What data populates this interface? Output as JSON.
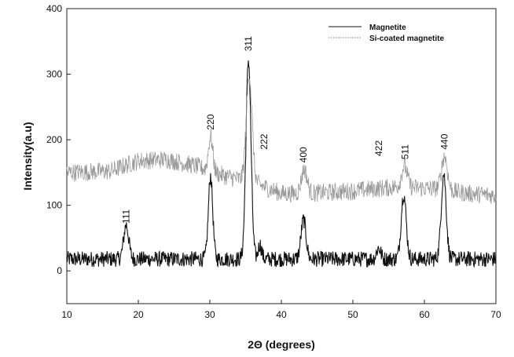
{
  "chart_data": {
    "type": "line",
    "title": "",
    "xlabel": "2Θ (degrees)",
    "ylabel": "Intensity(a.u)",
    "xlim": [
      10,
      70
    ],
    "ylim": [
      -50,
      400
    ],
    "xticks": [
      10,
      20,
      30,
      40,
      50,
      60,
      70
    ],
    "yticks": [
      0,
      100,
      200,
      300,
      400
    ],
    "grid": false,
    "legend_position": "top-right",
    "series": [
      {
        "name": "Magnetite",
        "color": "#111111",
        "baseline": 18,
        "noise": 12,
        "peaks": [
          {
            "x": 18.3,
            "y": 70,
            "width": 0.35
          },
          {
            "x": 30.1,
            "y": 145,
            "width": 0.3
          },
          {
            "x": 35.4,
            "y": 322,
            "width": 0.35
          },
          {
            "x": 37.0,
            "y": 40,
            "width": 0.25
          },
          {
            "x": 43.1,
            "y": 78,
            "width": 0.35
          },
          {
            "x": 53.6,
            "y": 35,
            "width": 0.3
          },
          {
            "x": 57.1,
            "y": 118,
            "width": 0.35
          },
          {
            "x": 62.7,
            "y": 148,
            "width": 0.35
          }
        ]
      },
      {
        "name": "Si-coated magnetite",
        "color": "#999999",
        "baseline_points": [
          [
            10,
            150
          ],
          [
            16,
            152
          ],
          [
            20,
            168
          ],
          [
            24,
            170
          ],
          [
            28,
            160
          ],
          [
            32,
            145
          ],
          [
            36,
            135
          ],
          [
            40,
            118
          ],
          [
            44,
            118
          ],
          [
            50,
            122
          ],
          [
            56,
            128
          ],
          [
            62,
            125
          ],
          [
            66,
            118
          ],
          [
            70,
            115
          ]
        ],
        "noise": 14,
        "peaks": [
          {
            "x": 30.1,
            "y": 205,
            "width": 0.3
          },
          {
            "x": 35.5,
            "y": 300,
            "width": 0.4
          },
          {
            "x": 43.2,
            "y": 155,
            "width": 0.4
          },
          {
            "x": 57.2,
            "y": 160,
            "width": 0.4
          },
          {
            "x": 62.8,
            "y": 175,
            "width": 0.4
          }
        ]
      }
    ],
    "peak_labels": [
      {
        "text": "111",
        "x": 18.3,
        "y": 72
      },
      {
        "text": "220",
        "x": 30.1,
        "y": 215
      },
      {
        "text": "311",
        "x": 35.4,
        "y": 335
      },
      {
        "text": "222",
        "x": 37.6,
        "y": 185
      },
      {
        "text": "400",
        "x": 43.1,
        "y": 165
      },
      {
        "text": "422",
        "x": 53.6,
        "y": 175
      },
      {
        "text": "511",
        "x": 57.3,
        "y": 170
      },
      {
        "text": "440",
        "x": 62.8,
        "y": 185
      }
    ]
  }
}
